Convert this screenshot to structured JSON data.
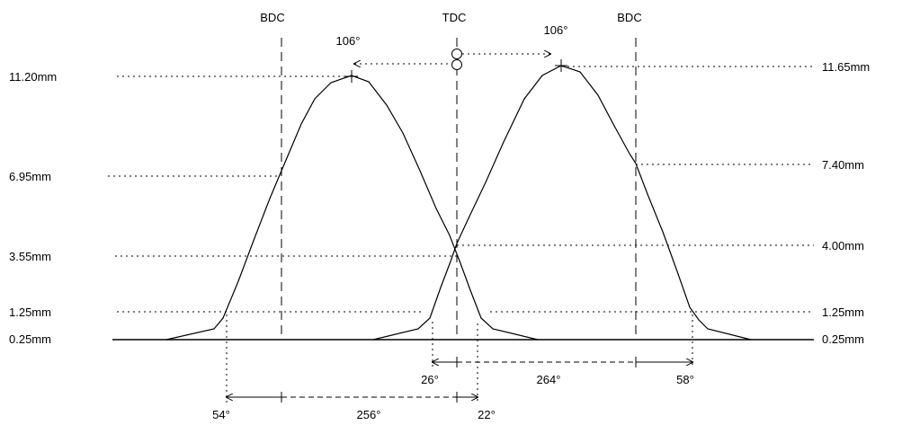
{
  "top_labels": {
    "bdc_left": "BDC",
    "tdc": "TDC",
    "bdc_right": "BDC"
  },
  "peak_angles": {
    "intake": "106°",
    "exhaust": "106°"
  },
  "left_lift_labels": [
    "11.20mm",
    "6.95mm",
    "3.55mm",
    "1.25mm",
    "0.25mm"
  ],
  "right_lift_labels": [
    "11.65mm",
    "7.40mm",
    "4.00mm",
    "1.25mm",
    "0.25mm"
  ],
  "upper_duration": {
    "left": "26°",
    "middle": "264°",
    "right": "58°"
  },
  "lower_duration": {
    "left": "54°",
    "middle": "256°",
    "right": "22°"
  },
  "colors": {
    "line": "#000000",
    "background": "#ffffff"
  }
}
